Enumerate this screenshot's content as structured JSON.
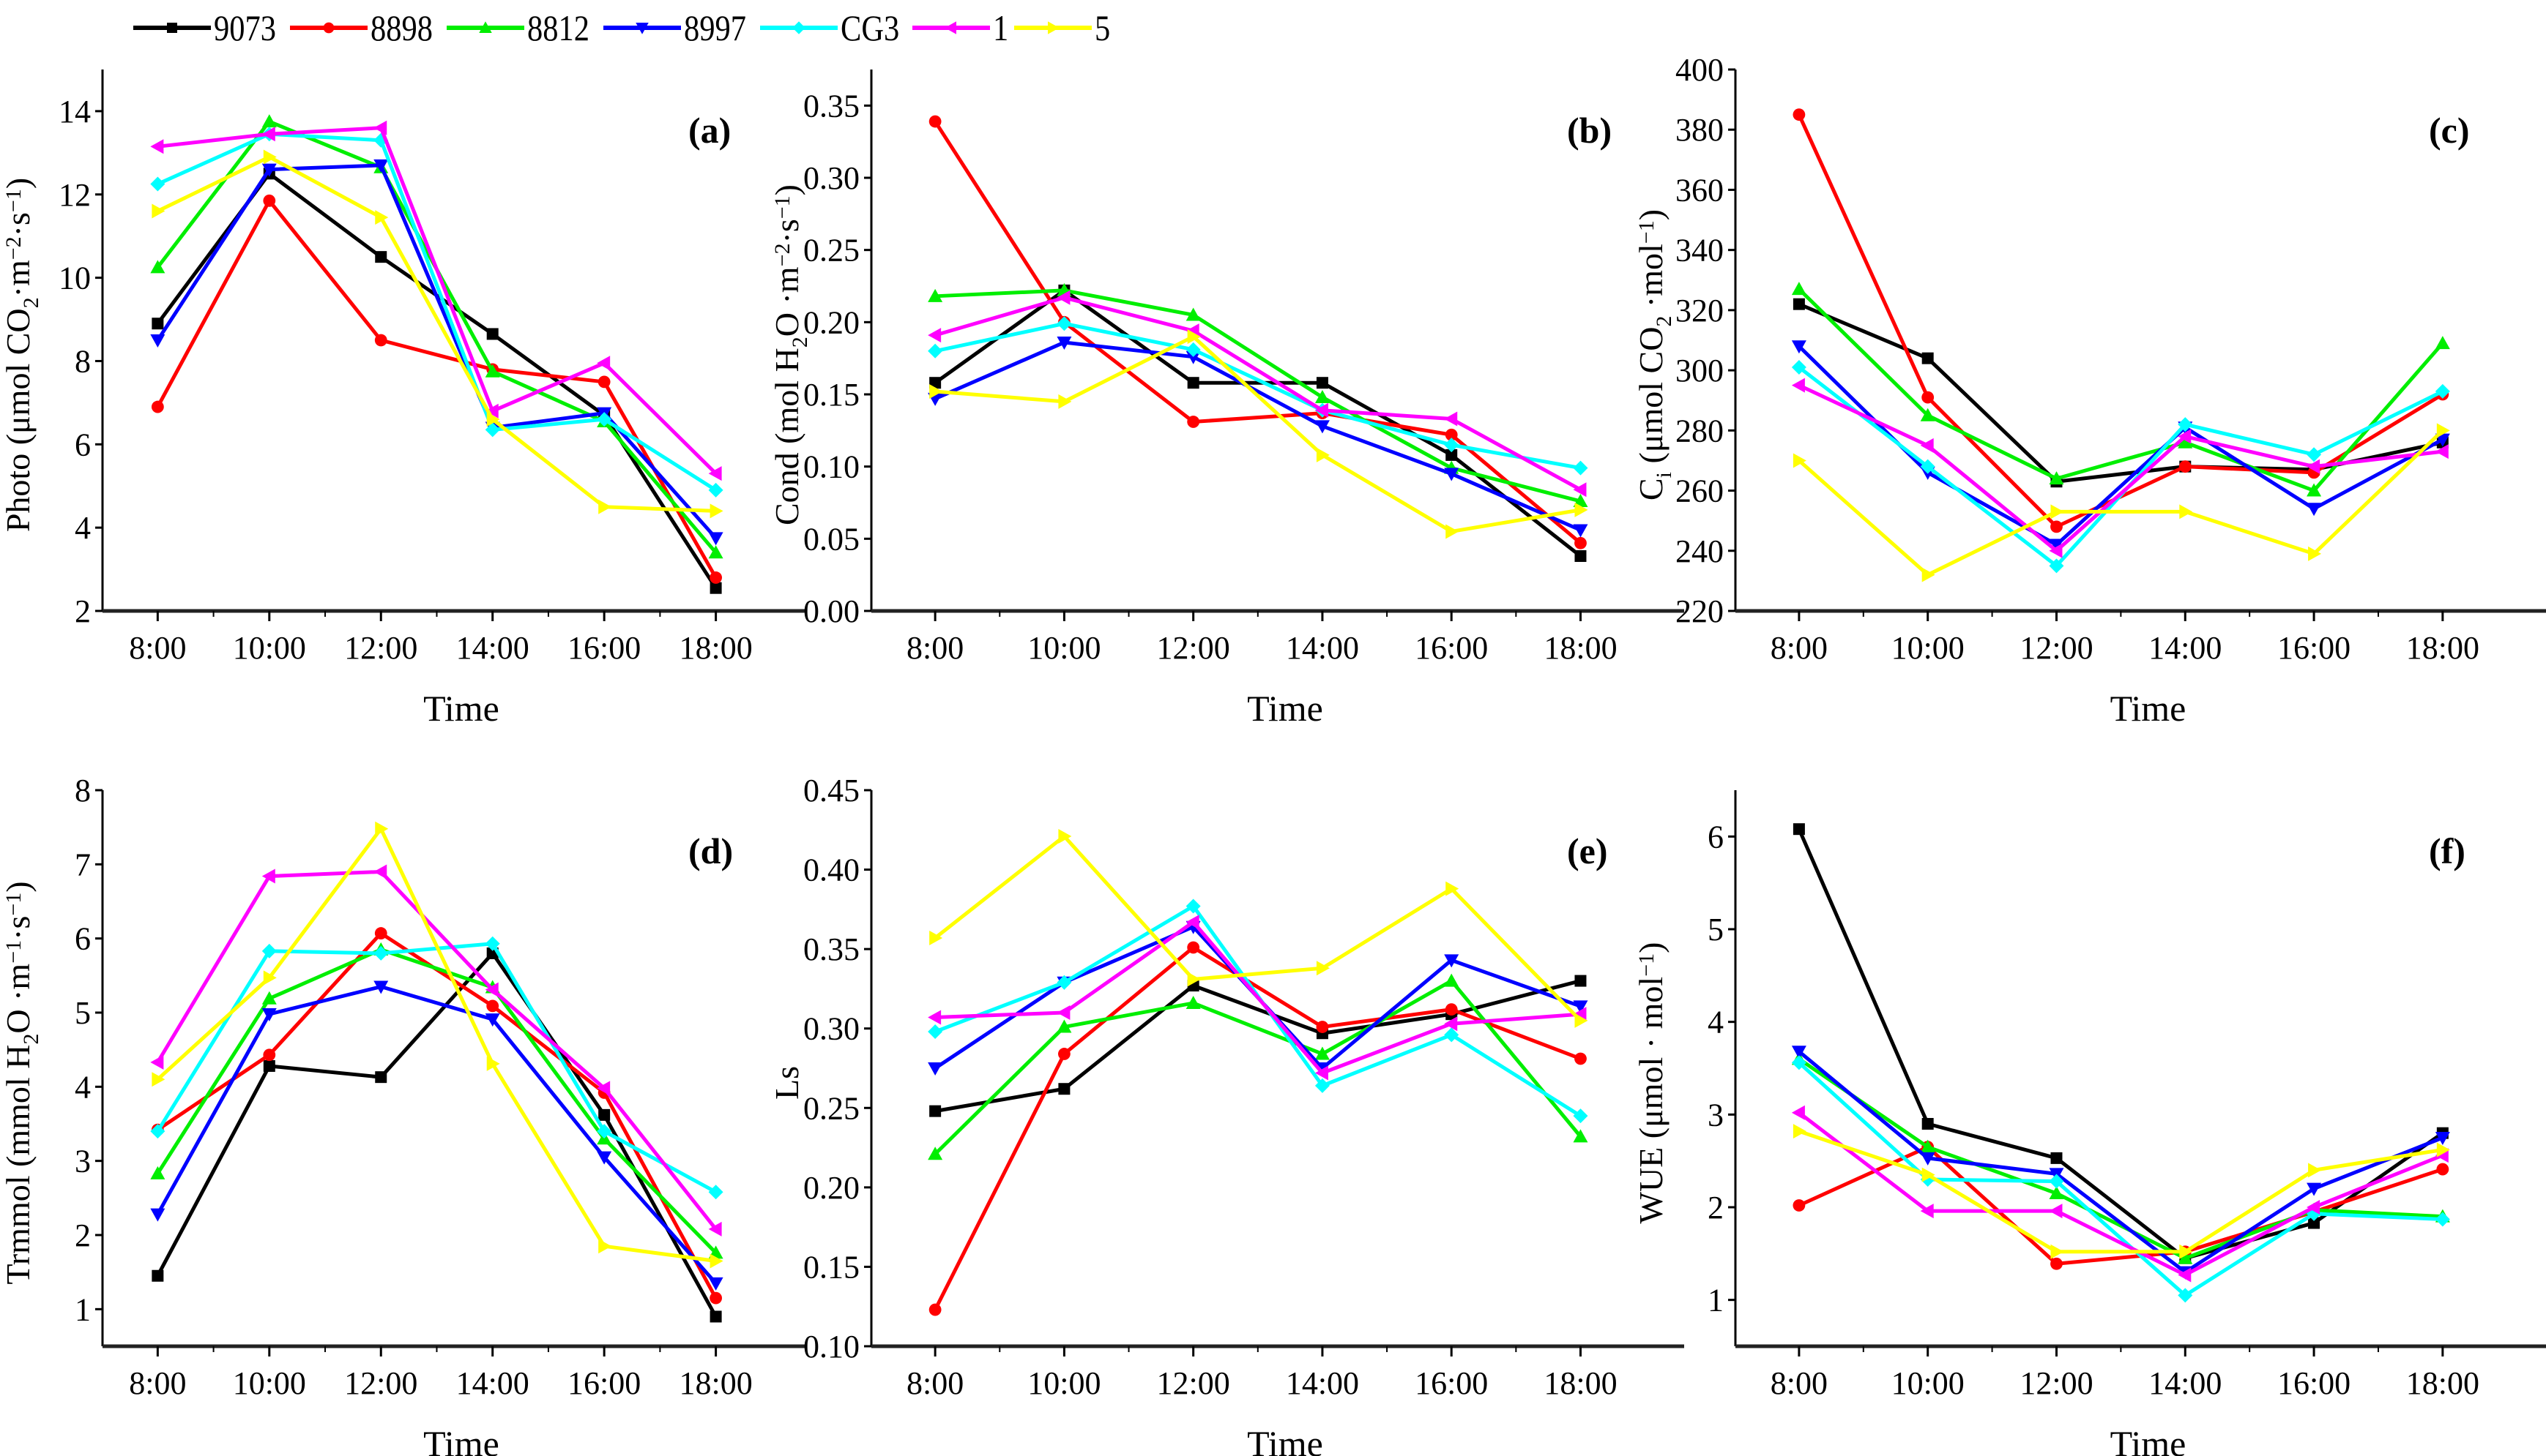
{
  "legend": [
    {
      "name": "9073",
      "color": "#000000",
      "marker": "square"
    },
    {
      "name": "8898",
      "color": "#ff0000",
      "marker": "circle"
    },
    {
      "name": "8812",
      "color": "#00ee00",
      "marker": "triangle-up"
    },
    {
      "name": "8997",
      "color": "#0000ff",
      "marker": "triangle-down"
    },
    {
      "name": "CG3",
      "color": "#00ffff",
      "marker": "diamond"
    },
    {
      "name": "1",
      "color": "#ff00ff",
      "marker": "triangle-left"
    },
    {
      "name": "5",
      "color": "#ffff00",
      "marker": "triangle-right"
    }
  ],
  "chart_data": [
    {
      "type": "line",
      "panel_label": "(a)",
      "title": "",
      "xlabel": "Time",
      "ylabel": "Photo (μmol CO2·m⁻²·s⁻¹)",
      "ylabel_parts": {
        "main": "Photo  (μmol CO",
        "sub": "2",
        "mid": "·m",
        "sup1": "−2",
        "mid2": "·s",
        "sup2": "−1",
        "end": ")"
      },
      "categories": [
        "8:00",
        "10:00",
        "12:00",
        "14:00",
        "16:00",
        "18:00"
      ],
      "ylim": [
        2,
        15
      ],
      "yticks": [
        2,
        4,
        6,
        8,
        10,
        12,
        14
      ],
      "ytick_labels": [
        "2",
        "4",
        "6",
        "8",
        "10",
        "12",
        "14"
      ],
      "grid": false,
      "legend_position": "top",
      "series": [
        {
          "name": "9073",
          "values": [
            8.9,
            12.5,
            10.5,
            8.65,
            6.7,
            2.55
          ]
        },
        {
          "name": "8898",
          "values": [
            6.9,
            11.85,
            8.5,
            7.8,
            7.5,
            2.8
          ]
        },
        {
          "name": "8812",
          "values": [
            10.25,
            13.75,
            12.65,
            7.75,
            6.55,
            3.4
          ]
        },
        {
          "name": "8997",
          "values": [
            8.5,
            12.6,
            12.7,
            6.4,
            6.75,
            3.75
          ]
        },
        {
          "name": "CG3",
          "values": [
            12.25,
            13.45,
            13.3,
            6.35,
            6.6,
            4.9
          ]
        },
        {
          "name": "1",
          "values": [
            13.15,
            13.45,
            13.6,
            6.8,
            7.95,
            5.3
          ]
        },
        {
          "name": "5",
          "values": [
            11.6,
            12.9,
            11.45,
            6.6,
            4.5,
            4.4
          ]
        }
      ]
    },
    {
      "type": "line",
      "panel_label": "(b)",
      "title": "",
      "xlabel": "Time",
      "ylabel": "Cond (mol H2O·m⁻²·s⁻¹)",
      "ylabel_parts": {
        "main": "Cond  (mol H",
        "sub": "2",
        "mid": "O ·m",
        "sup1": "−2",
        "mid2": "·s",
        "sup2": "−1",
        "end": ")"
      },
      "categories": [
        "8:00",
        "10:00",
        "12:00",
        "14:00",
        "16:00",
        "18:00"
      ],
      "ylim": [
        0,
        0.375
      ],
      "yticks": [
        0,
        0.05,
        0.1,
        0.15,
        0.2,
        0.25,
        0.3,
        0.35
      ],
      "ytick_labels": [
        "0.00",
        "0.05",
        "0.10",
        "0.15",
        "0.20",
        "0.25",
        "0.30",
        "0.35"
      ],
      "grid": false,
      "series": [
        {
          "name": "9073",
          "values": [
            0.158,
            0.222,
            0.158,
            0.158,
            0.108,
            0.038
          ]
        },
        {
          "name": "8898",
          "values": [
            0.339,
            0.2,
            0.131,
            0.137,
            0.122,
            0.047
          ]
        },
        {
          "name": "8812",
          "values": [
            0.218,
            0.222,
            0.205,
            0.148,
            0.099,
            0.076
          ]
        },
        {
          "name": "8997",
          "values": [
            0.147,
            0.186,
            0.176,
            0.128,
            0.095,
            0.056
          ]
        },
        {
          "name": "CG3",
          "values": [
            0.18,
            0.199,
            0.181,
            0.139,
            0.115,
            0.099
          ]
        },
        {
          "name": "1",
          "values": [
            0.191,
            0.217,
            0.194,
            0.139,
            0.133,
            0.084
          ]
        },
        {
          "name": "5",
          "values": [
            0.152,
            0.145,
            0.19,
            0.108,
            0.055,
            0.07
          ]
        }
      ]
    },
    {
      "type": "line",
      "panel_label": "(c)",
      "title": "",
      "xlabel": "Time",
      "ylabel": "Ci (μmol CO2·mol⁻¹)",
      "ylabel_parts": {
        "main": "C",
        "sub0": "i",
        "main2": "  (μmol CO",
        "sub": "2",
        "mid": " ·mol",
        "sup1": "−1",
        "end": ")"
      },
      "categories": [
        "8:00",
        "10:00",
        "12:00",
        "14:00",
        "16:00",
        "18:00"
      ],
      "ylim": [
        220,
        400
      ],
      "yticks": [
        220,
        240,
        260,
        280,
        300,
        320,
        340,
        360,
        380,
        400
      ],
      "ytick_labels": [
        "220",
        "240",
        "260",
        "280",
        "300",
        "320",
        "340",
        "360",
        "380",
        "400"
      ],
      "grid": false,
      "series": [
        {
          "name": "9073",
          "values": [
            322,
            304,
            263,
            268,
            267,
            276
          ]
        },
        {
          "name": "8898",
          "values": [
            385,
            291,
            248,
            268,
            266,
            292
          ]
        },
        {
          "name": "8812",
          "values": [
            327,
            285,
            264,
            276,
            260,
            309
          ]
        },
        {
          "name": "8997",
          "values": [
            308,
            266,
            242,
            281,
            254,
            277
          ]
        },
        {
          "name": "CG3",
          "values": [
            301,
            268,
            235,
            282,
            272,
            293
          ]
        },
        {
          "name": "1",
          "values": [
            295,
            275,
            240,
            278,
            268,
            273
          ]
        },
        {
          "name": "5",
          "values": [
            270,
            232,
            253,
            253,
            239,
            280
          ]
        }
      ]
    },
    {
      "type": "line",
      "panel_label": "(d)",
      "title": "",
      "xlabel": "Time",
      "ylabel": "Trmmol (mmol H2O·m⁻¹·s⁻¹)",
      "ylabel_parts": {
        "main": "Trmmol  (mmol H",
        "sub": "2",
        "mid": "O ·m",
        "sup1": "−1",
        "mid2": "·s",
        "sup2": "−1",
        "end": ")"
      },
      "categories": [
        "8:00",
        "10:00",
        "12:00",
        "14:00",
        "16:00",
        "18:00"
      ],
      "ylim": [
        0.5,
        8
      ],
      "yticks": [
        1,
        2,
        3,
        4,
        5,
        6,
        7,
        8
      ],
      "ytick_labels": [
        "1",
        "2",
        "3",
        "4",
        "5",
        "6",
        "7",
        "8"
      ],
      "grid": false,
      "series": [
        {
          "name": "9073",
          "values": [
            1.45,
            4.28,
            4.13,
            5.8,
            3.62,
            0.9
          ]
        },
        {
          "name": "8898",
          "values": [
            3.42,
            4.43,
            6.07,
            5.09,
            3.92,
            1.15
          ]
        },
        {
          "name": "8812",
          "values": [
            2.83,
            5.19,
            5.85,
            5.34,
            3.3,
            1.76
          ]
        },
        {
          "name": "8997",
          "values": [
            2.28,
            4.98,
            5.35,
            4.91,
            3.05,
            1.35
          ]
        },
        {
          "name": "CG3",
          "values": [
            3.4,
            5.83,
            5.8,
            5.93,
            3.4,
            2.58
          ]
        },
        {
          "name": "1",
          "values": [
            4.33,
            6.84,
            6.9,
            5.31,
            3.98,
            2.08
          ]
        },
        {
          "name": "5",
          "values": [
            4.1,
            5.47,
            7.48,
            4.31,
            1.85,
            1.65
          ]
        }
      ]
    },
    {
      "type": "line",
      "panel_label": "(e)",
      "title": "",
      "xlabel": "Time",
      "ylabel": "Ls",
      "ylabel_parts": {
        "main": "Ls"
      },
      "categories": [
        "8:00",
        "10:00",
        "12:00",
        "14:00",
        "16:00",
        "18:00"
      ],
      "ylim": [
        0.1,
        0.45
      ],
      "yticks": [
        0.1,
        0.15,
        0.2,
        0.25,
        0.3,
        0.35,
        0.4,
        0.45
      ],
      "ytick_labels": [
        "0.10",
        "0.15",
        "0.20",
        "0.25",
        "0.30",
        "0.35",
        "0.40",
        "0.45"
      ],
      "grid": false,
      "series": [
        {
          "name": "9073",
          "values": [
            0.248,
            0.262,
            0.327,
            0.297,
            0.309,
            0.33
          ]
        },
        {
          "name": "8898",
          "values": [
            0.123,
            0.284,
            0.351,
            0.301,
            0.312,
            0.281
          ]
        },
        {
          "name": "8812",
          "values": [
            0.221,
            0.301,
            0.316,
            0.284,
            0.33,
            0.232
          ]
        },
        {
          "name": "8997",
          "values": [
            0.275,
            0.329,
            0.364,
            0.275,
            0.343,
            0.314
          ]
        },
        {
          "name": "CG3",
          "values": [
            0.298,
            0.329,
            0.377,
            0.264,
            0.296,
            0.245
          ]
        },
        {
          "name": "1",
          "values": [
            0.307,
            0.31,
            0.367,
            0.272,
            0.303,
            0.309
          ]
        },
        {
          "name": "5",
          "values": [
            0.357,
            0.421,
            0.331,
            0.338,
            0.388,
            0.305
          ]
        }
      ]
    },
    {
      "type": "line",
      "panel_label": "(f)",
      "title": "",
      "xlabel": "Time",
      "ylabel": "WUE (μmol · mol⁻¹)",
      "ylabel_parts": {
        "main": "WUE  (μmol · mol",
        "sup1": "−1",
        "end": ")"
      },
      "categories": [
        "8:00",
        "10:00",
        "12:00",
        "14:00",
        "16:00",
        "18:00"
      ],
      "ylim": [
        0.5,
        6.5
      ],
      "yticks": [
        1,
        2,
        3,
        4,
        5,
        6
      ],
      "ytick_labels": [
        "1",
        "2",
        "3",
        "4",
        "5",
        "6"
      ],
      "grid": false,
      "series": [
        {
          "name": "9073",
          "values": [
            6.08,
            2.9,
            2.53,
            1.45,
            1.83,
            2.8
          ]
        },
        {
          "name": "8898",
          "values": [
            2.02,
            2.65,
            1.39,
            1.52,
            1.95,
            2.41
          ]
        },
        {
          "name": "8812",
          "values": [
            3.6,
            2.65,
            2.15,
            1.45,
            1.97,
            1.9
          ]
        },
        {
          "name": "8997",
          "values": [
            3.68,
            2.53,
            2.36,
            1.3,
            2.2,
            2.75
          ]
        },
        {
          "name": "CG3",
          "values": [
            3.56,
            2.3,
            2.28,
            1.05,
            1.93,
            1.87
          ]
        },
        {
          "name": "1",
          "values": [
            3.02,
            1.96,
            1.96,
            1.27,
            2.0,
            2.56
          ]
        },
        {
          "name": "5",
          "values": [
            2.82,
            2.35,
            1.52,
            1.52,
            2.4,
            2.62
          ]
        }
      ]
    }
  ]
}
